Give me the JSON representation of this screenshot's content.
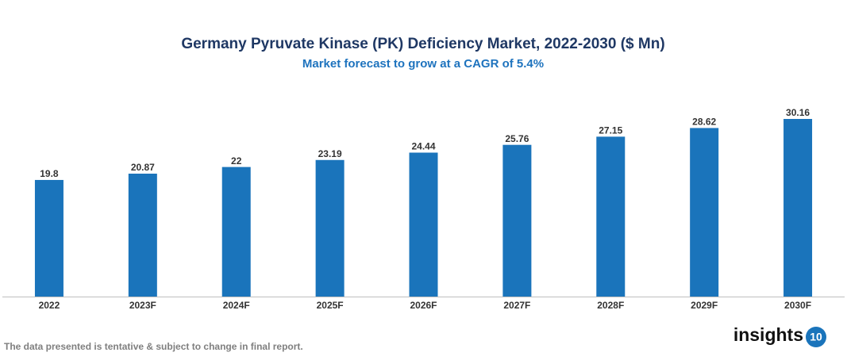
{
  "chart_data": {
    "type": "bar",
    "title": "Germany Pyruvate Kinase (PK) Deficiency Market, 2022-2030 ($ Mn)",
    "subtitle": "Market forecast to grow at a CAGR of 5.4%",
    "categories": [
      "2022",
      "2023F",
      "2024F",
      "2025F",
      "2026F",
      "2027F",
      "2028F",
      "2029F",
      "2030F"
    ],
    "values": [
      19.8,
      20.87,
      22,
      23.19,
      24.44,
      25.76,
      27.15,
      28.62,
      30.16
    ],
    "color": "#1a74bb"
  },
  "footnote": "The data presented is tentative & subject to change in final report.",
  "logo": {
    "text": "insights",
    "badge": "10"
  }
}
